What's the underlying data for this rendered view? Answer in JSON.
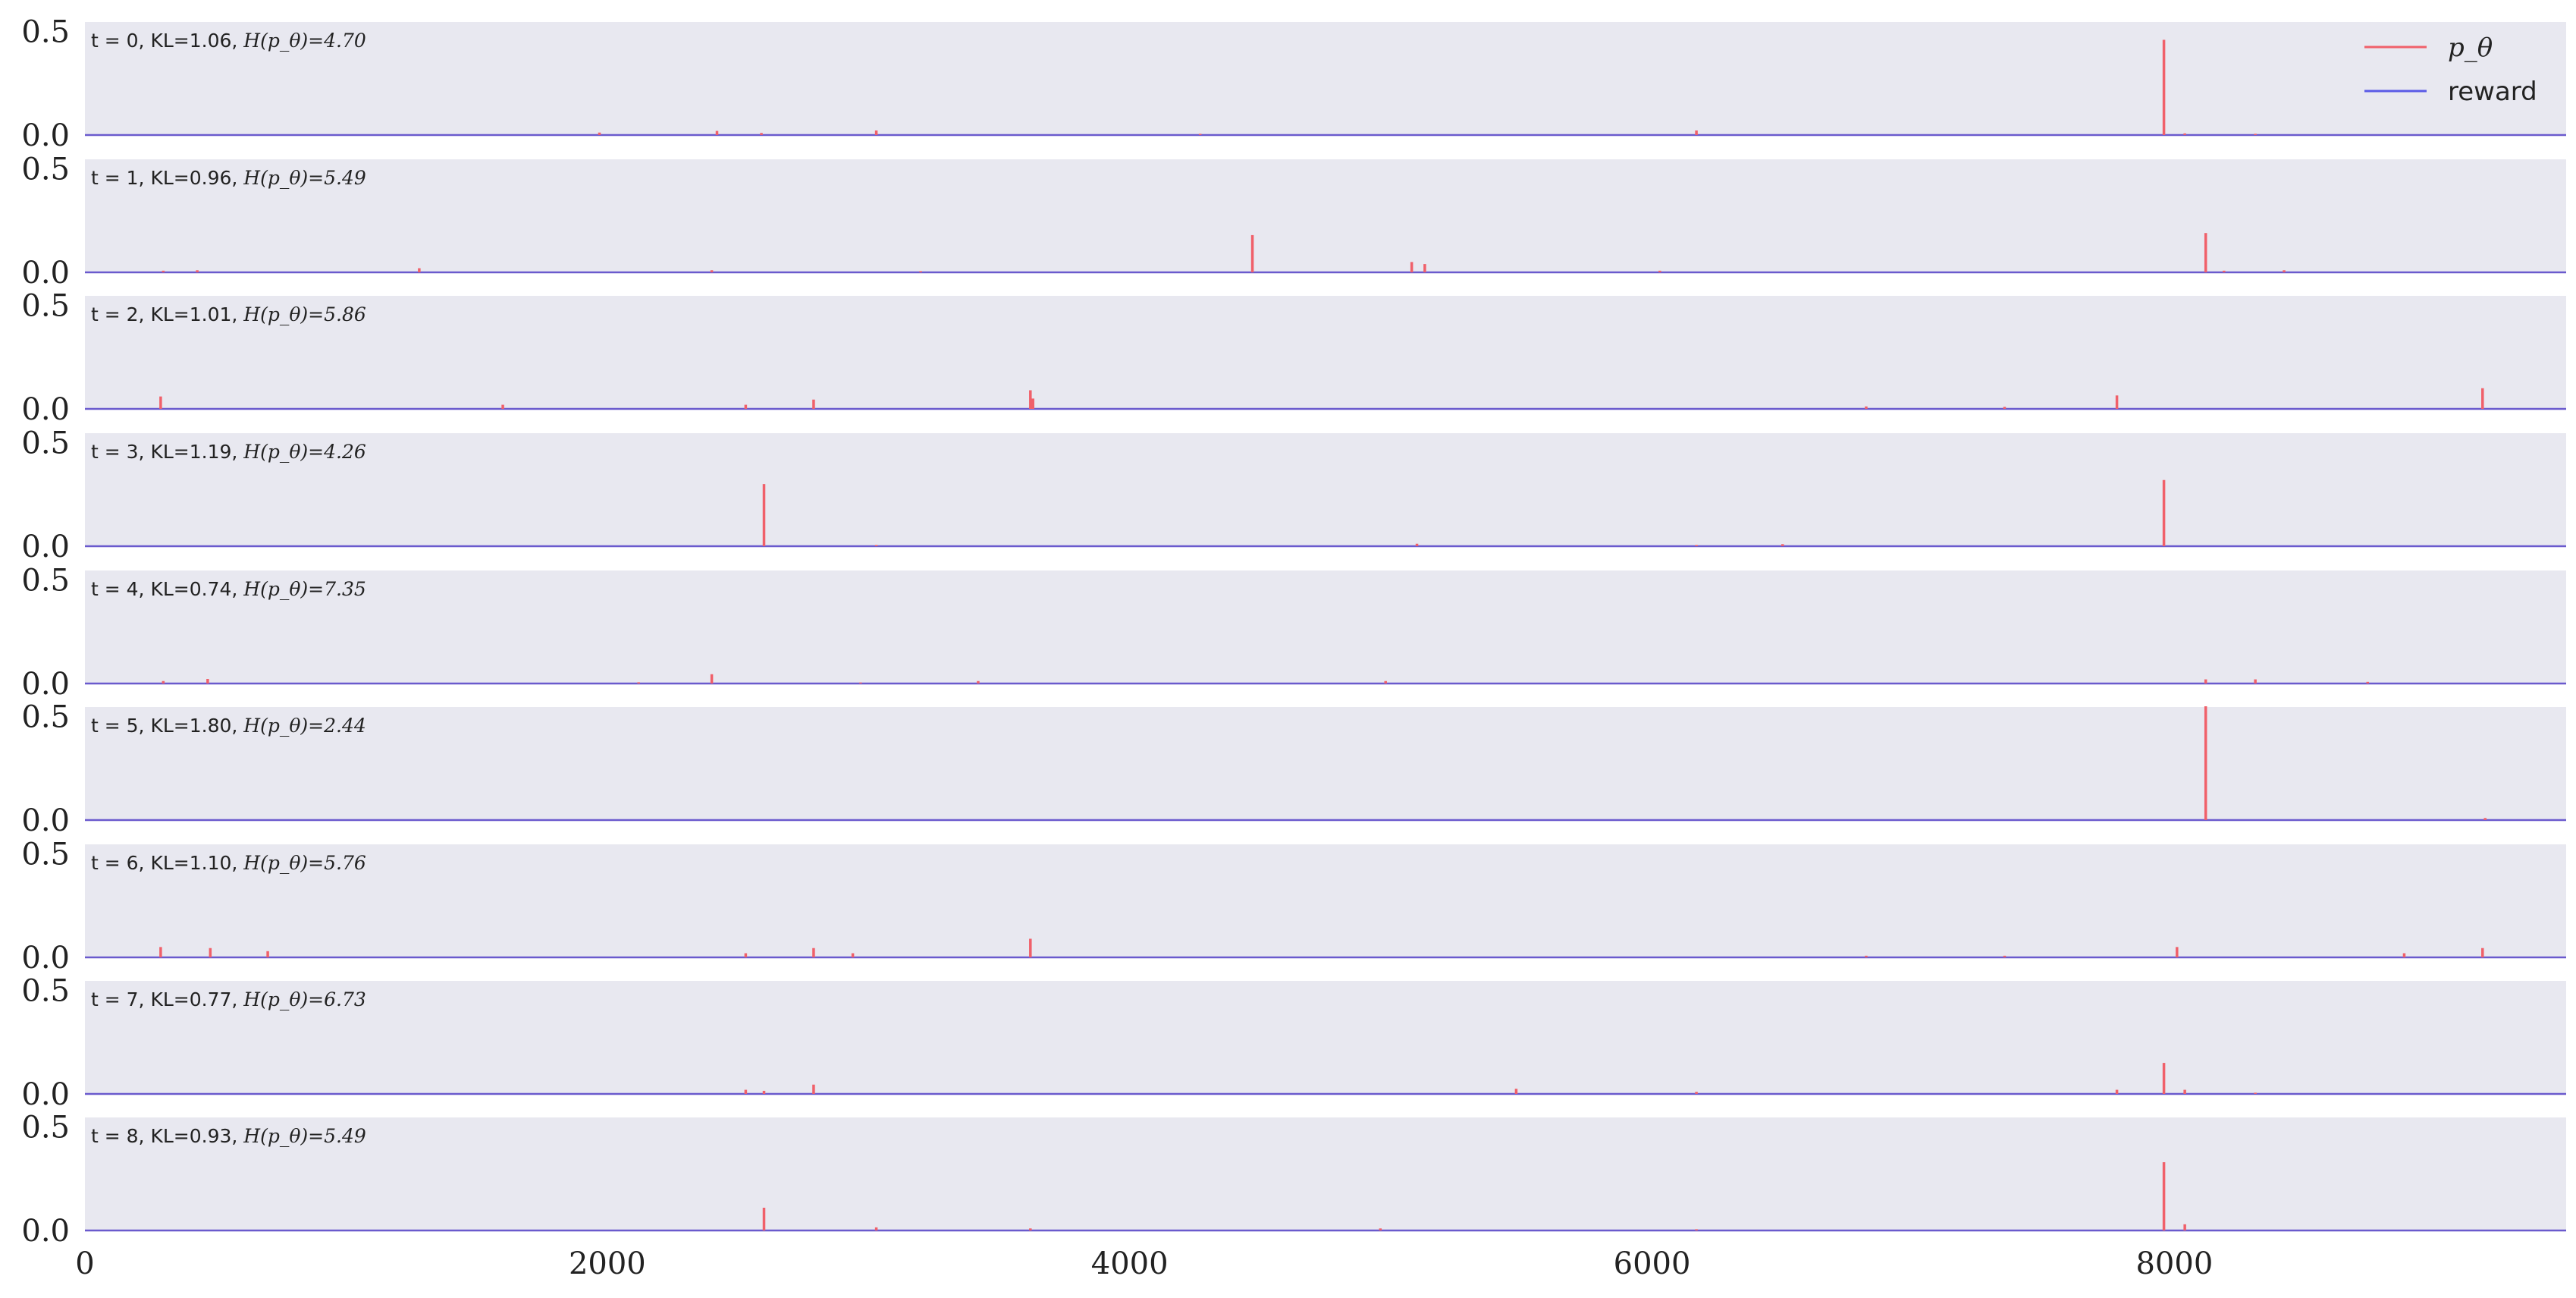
{
  "chart_data": {
    "type": "line",
    "xlim": [
      0,
      9500
    ],
    "ylim": [
      0,
      0.55
    ],
    "x_ticks": [
      "0",
      "2000",
      "4000",
      "6000",
      "8000"
    ],
    "x_tick_values": [
      0,
      2000,
      4000,
      6000,
      8000
    ],
    "y_ticks": [
      "0.0",
      "0.5"
    ],
    "y_tick_values": [
      0,
      0.5
    ],
    "grid": false,
    "background_color": "#e8e8f0",
    "legend": {
      "placement": "top-right",
      "items": [
        {
          "label": "p_θ",
          "color": "#f0606a",
          "math": true
        },
        {
          "label": "reward",
          "color": "#5a5ae6",
          "math": false
        }
      ]
    },
    "series_colors": {
      "p_theta": "#f0606a",
      "reward": "#6a5acd"
    },
    "panels": [
      {
        "label_prefix": "t = 0, KL=1.06,",
        "entropy": "H(p_θ)=4.70",
        "spikes": [
          [
            1970,
            0.012
          ],
          [
            2420,
            0.02
          ],
          [
            2590,
            0.01
          ],
          [
            3030,
            0.022
          ],
          [
            4270,
            0.006
          ],
          [
            6170,
            0.022
          ],
          [
            7960,
            0.46
          ],
          [
            8040,
            0.008
          ],
          [
            8310,
            0.006
          ]
        ]
      },
      {
        "label_prefix": "t = 1, KL=0.96,",
        "entropy": "H(p_θ)=5.49",
        "spikes": [
          [
            300,
            0.008
          ],
          [
            430,
            0.01
          ],
          [
            1280,
            0.02
          ],
          [
            2400,
            0.01
          ],
          [
            3200,
            0.006
          ],
          [
            4470,
            0.18
          ],
          [
            5080,
            0.05
          ],
          [
            5130,
            0.04
          ],
          [
            6030,
            0.008
          ],
          [
            8120,
            0.19
          ],
          [
            8190,
            0.008
          ],
          [
            8420,
            0.01
          ]
        ]
      },
      {
        "label_prefix": "t = 2, KL=1.01,",
        "entropy": "H(p_θ)=5.86",
        "spikes": [
          [
            290,
            0.06
          ],
          [
            1600,
            0.02
          ],
          [
            2530,
            0.02
          ],
          [
            2790,
            0.045
          ],
          [
            3620,
            0.09
          ],
          [
            3630,
            0.05
          ],
          [
            6820,
            0.012
          ],
          [
            7350,
            0.01
          ],
          [
            7780,
            0.065
          ],
          [
            9180,
            0.1
          ]
        ]
      },
      {
        "label_prefix": "t = 3, KL=1.19,",
        "entropy": "H(p_θ)=4.26",
        "spikes": [
          [
            2600,
            0.3
          ],
          [
            3030,
            0.006
          ],
          [
            5100,
            0.012
          ],
          [
            6170,
            0.006
          ],
          [
            6500,
            0.01
          ],
          [
            7960,
            0.32
          ]
        ]
      },
      {
        "label_prefix": "t = 4, KL=0.74,",
        "entropy": "H(p_θ)=7.35",
        "spikes": [
          [
            300,
            0.012
          ],
          [
            470,
            0.022
          ],
          [
            2120,
            0.006
          ],
          [
            2400,
            0.045
          ],
          [
            2970,
            0.005
          ],
          [
            3420,
            0.012
          ],
          [
            4980,
            0.012
          ],
          [
            8120,
            0.02
          ],
          [
            8310,
            0.02
          ],
          [
            8740,
            0.008
          ]
        ]
      },
      {
        "label_prefix": "t = 5, KL=1.80,",
        "entropy": "H(p_θ)=2.44",
        "spikes": [
          [
            8120,
            0.75
          ],
          [
            9190,
            0.01
          ]
        ]
      },
      {
        "label_prefix": "t = 6, KL=1.10,",
        "entropy": "H(p_θ)=5.76",
        "spikes": [
          [
            290,
            0.05
          ],
          [
            480,
            0.045
          ],
          [
            700,
            0.03
          ],
          [
            2530,
            0.02
          ],
          [
            2790,
            0.045
          ],
          [
            2940,
            0.02
          ],
          [
            3620,
            0.09
          ],
          [
            6820,
            0.008
          ],
          [
            7350,
            0.008
          ],
          [
            8010,
            0.05
          ],
          [
            8880,
            0.02
          ],
          [
            9180,
            0.045
          ]
        ]
      },
      {
        "label_prefix": "t = 7, KL=0.77,",
        "entropy": "H(p_θ)=6.73",
        "spikes": [
          [
            2530,
            0.02
          ],
          [
            2600,
            0.015
          ],
          [
            2790,
            0.045
          ],
          [
            5480,
            0.025
          ],
          [
            6170,
            0.01
          ],
          [
            7780,
            0.02
          ],
          [
            7960,
            0.15
          ],
          [
            8040,
            0.02
          ],
          [
            8310,
            0.006
          ]
        ]
      },
      {
        "label_prefix": "t = 8, KL=0.93,",
        "entropy": "H(p_θ)=5.49",
        "spikes": [
          [
            2600,
            0.11
          ],
          [
            3030,
            0.015
          ],
          [
            3620,
            0.01
          ],
          [
            4960,
            0.01
          ],
          [
            6170,
            0.006
          ],
          [
            7960,
            0.33
          ],
          [
            8040,
            0.03
          ]
        ]
      }
    ]
  }
}
